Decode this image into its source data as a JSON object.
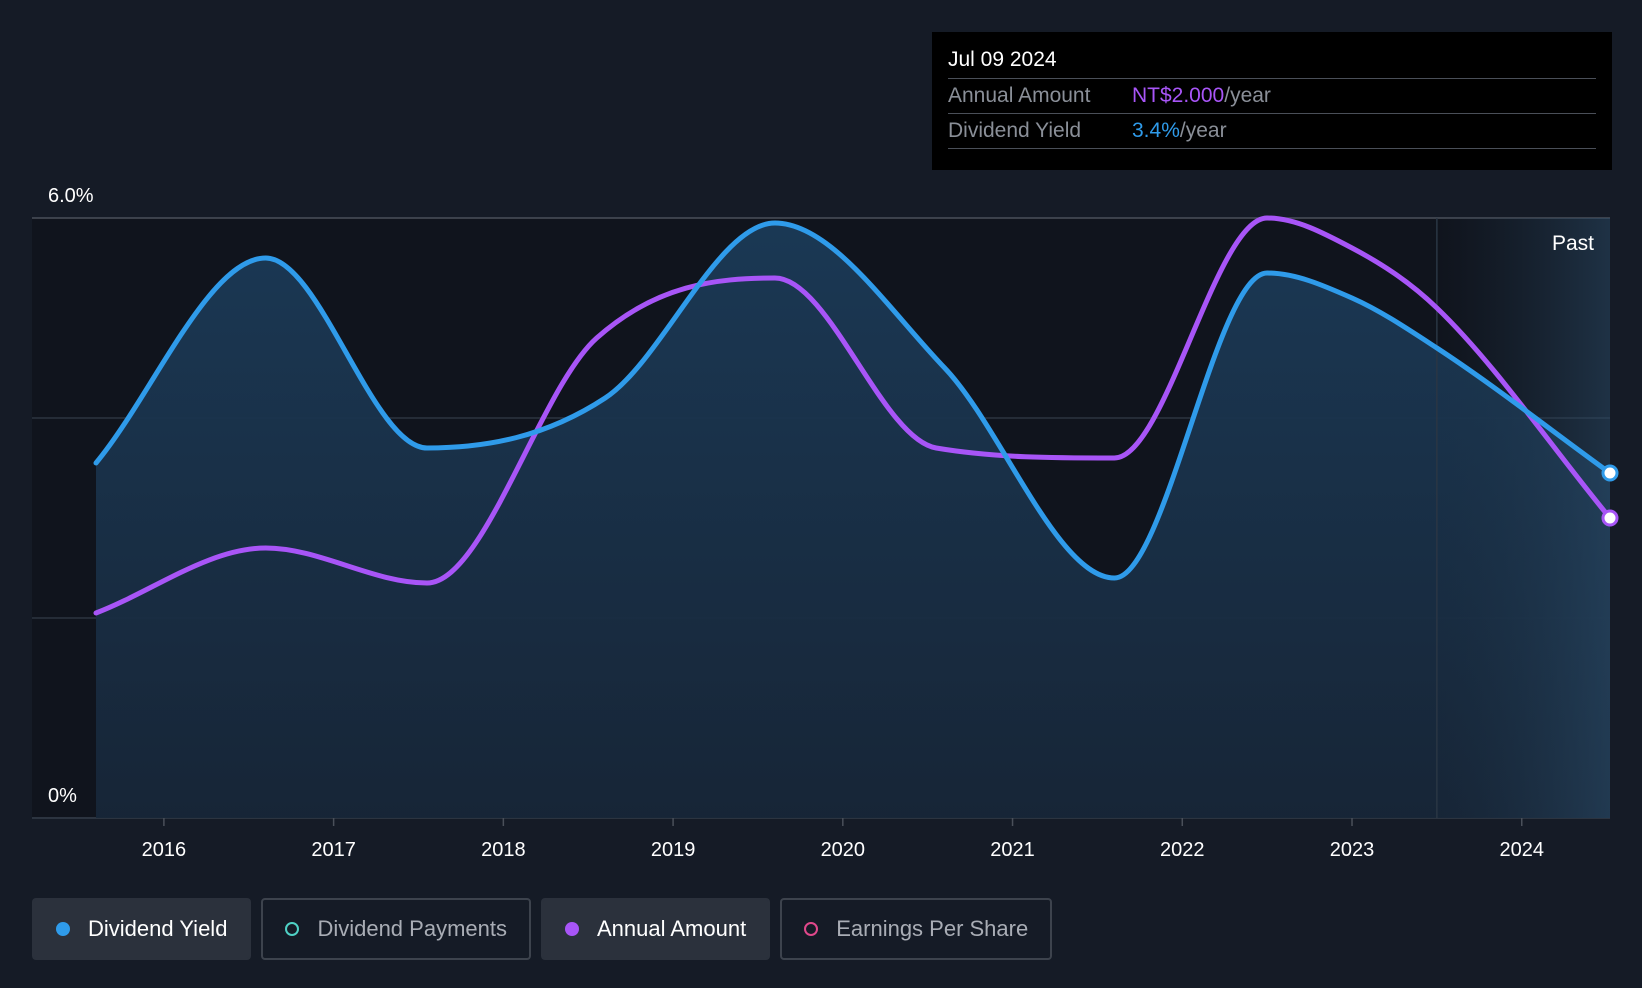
{
  "tooltip": {
    "date": "Jul 09 2024",
    "rows": [
      {
        "label": "Annual Amount",
        "value": "NT$2.000",
        "unit": "/year",
        "color": "#a855f7"
      },
      {
        "label": "Dividend Yield",
        "value": "3.4%",
        "unit": "/year",
        "color": "#2f9bea"
      }
    ]
  },
  "legend": [
    {
      "label": "Dividend Yield",
      "color": "#2f9bea",
      "active": true,
      "filled": true
    },
    {
      "label": "Dividend Payments",
      "color": "#4fd1c5",
      "active": false,
      "filled": false
    },
    {
      "label": "Annual Amount",
      "color": "#a855f7",
      "active": true,
      "filled": true
    },
    {
      "label": "Earnings Per Share",
      "color": "#e0488b",
      "active": false,
      "filled": false
    }
  ],
  "colors": {
    "background": "#151b26",
    "plot_area": "#10141d",
    "yield_line": "#2f9bea",
    "amount_line": "#a855f7",
    "grid": "#3a404a"
  },
  "chart_data": {
    "type": "line",
    "title": "",
    "xlabel": "",
    "ylabel": "",
    "xlim": [
      2015.6,
      2024.52
    ],
    "ylim": [
      0,
      6.0
    ],
    "y_tick_labels": [
      "0%",
      "6.0%"
    ],
    "x_tick_labels": [
      "2016",
      "2017",
      "2018",
      "2019",
      "2020",
      "2021",
      "2022",
      "2023",
      "2024"
    ],
    "x_ticks": [
      2016,
      2017,
      2018,
      2019,
      2020,
      2021,
      2022,
      2023,
      2024
    ],
    "gridlines_y": [
      0,
      2.0,
      4.0,
      6.0
    ],
    "past_region_start": 2023.5,
    "past_label": "Past",
    "series": [
      {
        "name": "Dividend Yield",
        "unit": "%",
        "x": [
          2015.6,
          2016.6,
          2017.55,
          2018.6,
          2019.6,
          2020.6,
          2021.6,
          2022.5,
          2023.0,
          2023.5,
          2024.52
        ],
        "y": [
          3.55,
          5.6,
          3.7,
          4.2,
          5.95,
          4.5,
          2.4,
          5.45,
          5.2,
          4.7,
          3.45
        ]
      },
      {
        "name": "Annual Amount",
        "unit": "index",
        "x": [
          2015.6,
          2016.6,
          2017.55,
          2018.55,
          2019.6,
          2020.55,
          2021.6,
          2022.5,
          2023.0,
          2023.5,
          2024.52
        ],
        "y": [
          2.05,
          2.7,
          2.35,
          4.8,
          5.4,
          3.7,
          3.6,
          6.0,
          5.7,
          5.1,
          3.0
        ]
      }
    ]
  }
}
